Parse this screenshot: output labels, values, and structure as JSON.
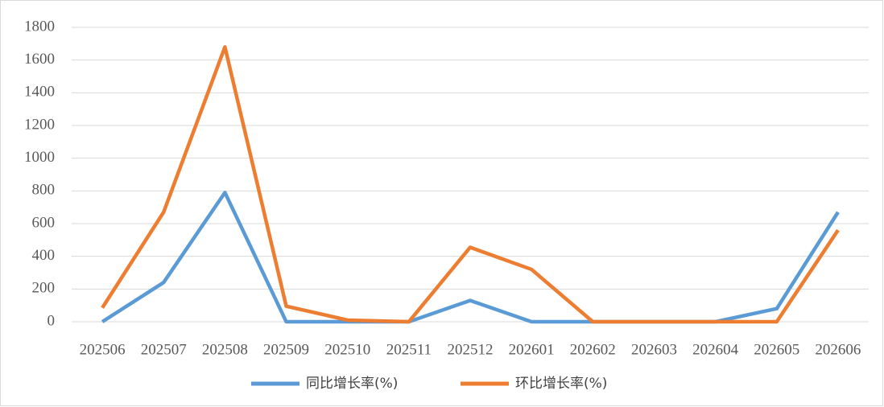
{
  "chart_data": {
    "type": "line",
    "categories": [
      "202506",
      "202507",
      "202508",
      "202509",
      "202510",
      "202511",
      "202512",
      "202601",
      "202602",
      "202603",
      "202604",
      "202605",
      "202606"
    ],
    "series": [
      {
        "name": "同比增长率(%)",
        "color": "#5b9bd5",
        "values": [
          0,
          240,
          790,
          0,
          0,
          0,
          130,
          0,
          0,
          0,
          0,
          80,
          670
        ]
      },
      {
        "name": "环比增长率(%)",
        "color": "#ed7d31",
        "values": [
          85,
          670,
          1680,
          95,
          10,
          0,
          455,
          320,
          0,
          0,
          0,
          0,
          560
        ]
      }
    ],
    "ylim": [
      0,
      1800
    ],
    "yticks": [
      0,
      200,
      400,
      600,
      800,
      1000,
      1200,
      1400,
      1600,
      1800
    ],
    "grid": true,
    "legend": "bottom"
  }
}
